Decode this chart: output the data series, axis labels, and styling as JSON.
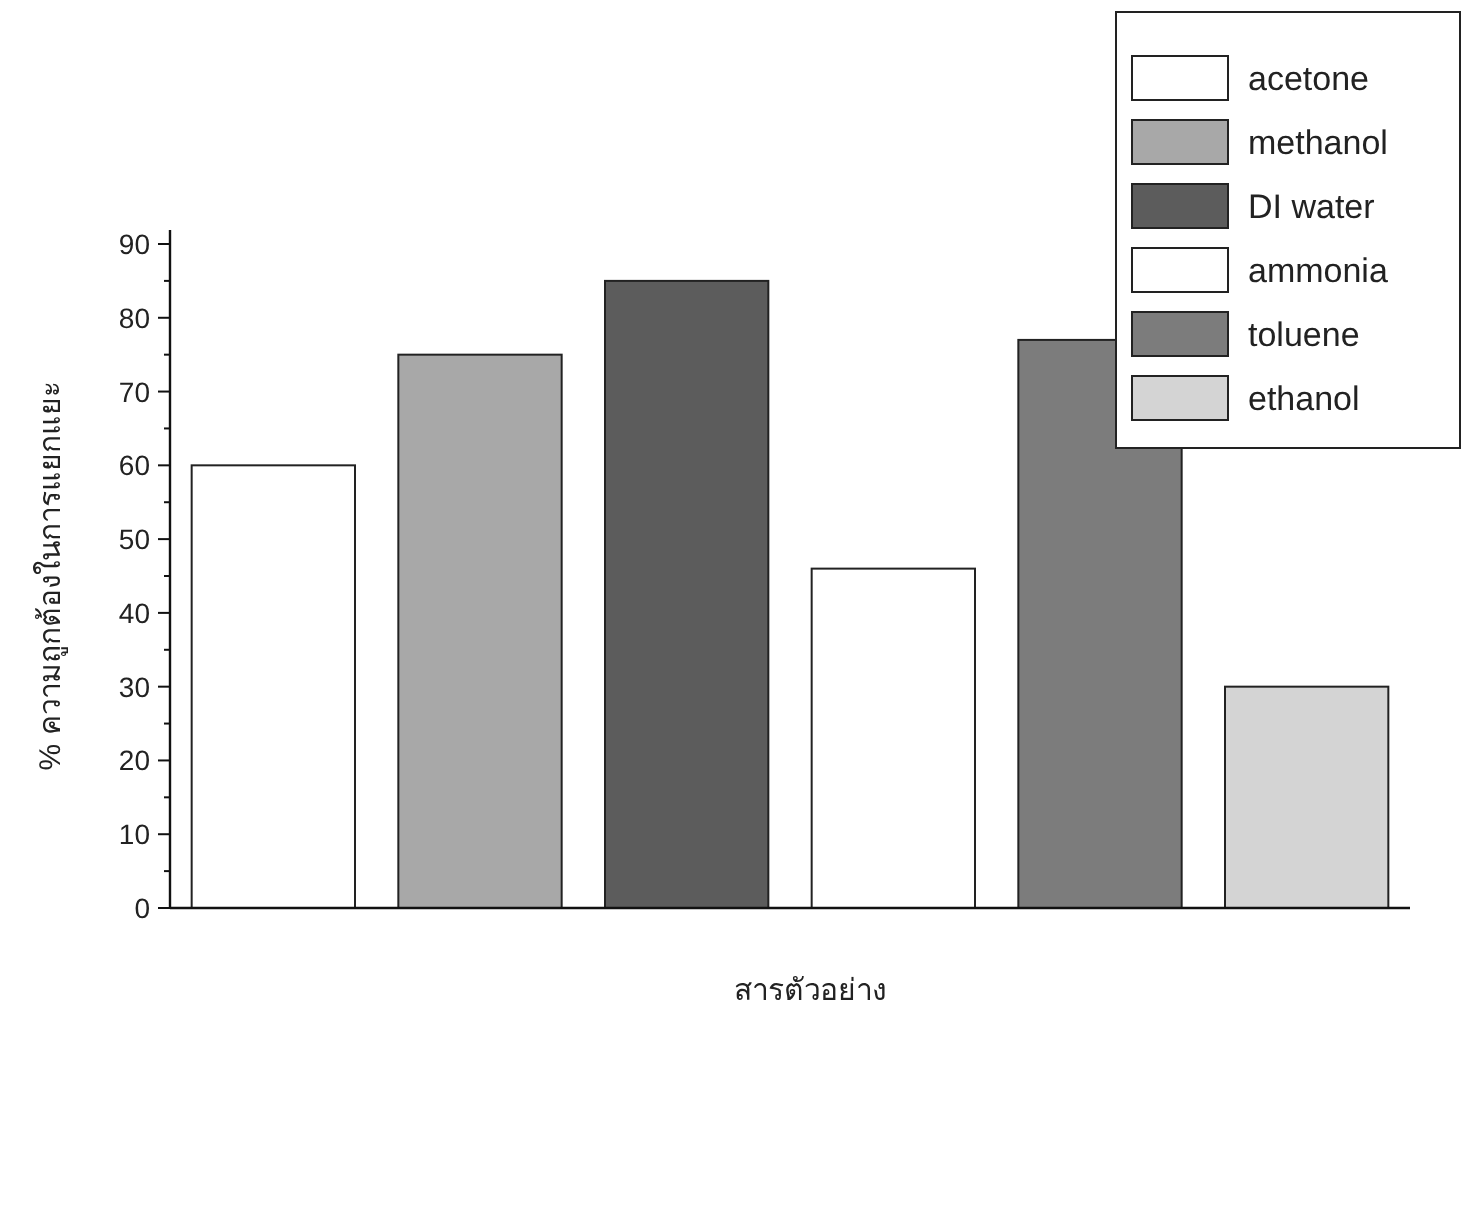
{
  "chart_data": {
    "type": "bar",
    "xlabel": "สารตัวอย่าง",
    "ylabel": "% ความถูกต้องในการแยกแยะ",
    "categories": [
      null,
      null,
      null,
      null,
      null,
      null
    ],
    "ylim": [
      0,
      90
    ],
    "yticks": [
      0,
      {
        "value": 5,
        "label": null
      },
      10,
      {
        "value": 15,
        "label": null
      },
      20,
      {
        "value": 25,
        "label": null
      },
      30,
      {
        "value": 35,
        "label": null
      },
      40,
      {
        "value": 45,
        "label": null
      },
      50,
      {
        "value": 55,
        "label": null
      },
      60,
      {
        "value": 65,
        "label": null
      },
      70,
      {
        "value": 75,
        "label": null
      },
      80,
      {
        "value": 85,
        "label": null
      },
      90
    ],
    "legend": "top right",
    "series": [
      {
        "name": "acetone",
        "color": "#ffffff",
        "values": [
          60,
          null,
          null,
          null,
          null,
          null
        ]
      },
      {
        "name": "methanol",
        "color": "#a8a8a8",
        "values": [
          null,
          75,
          null,
          null,
          null,
          null
        ]
      },
      {
        "name": "DI water",
        "color": "#5c5c5c",
        "values": [
          null,
          null,
          85,
          null,
          null,
          null
        ]
      },
      {
        "name": "ammonia",
        "color": "#ffffff",
        "values": [
          null,
          null,
          null,
          46,
          null,
          null
        ]
      },
      {
        "name": "toluene",
        "color": "#7c7c7c",
        "values": [
          null,
          null,
          null,
          null,
          77,
          null
        ]
      },
      {
        "name": "ethanol",
        "color": "#d4d4d4",
        "values": [
          null,
          null,
          null,
          null,
          null,
          30
        ]
      }
    ]
  }
}
